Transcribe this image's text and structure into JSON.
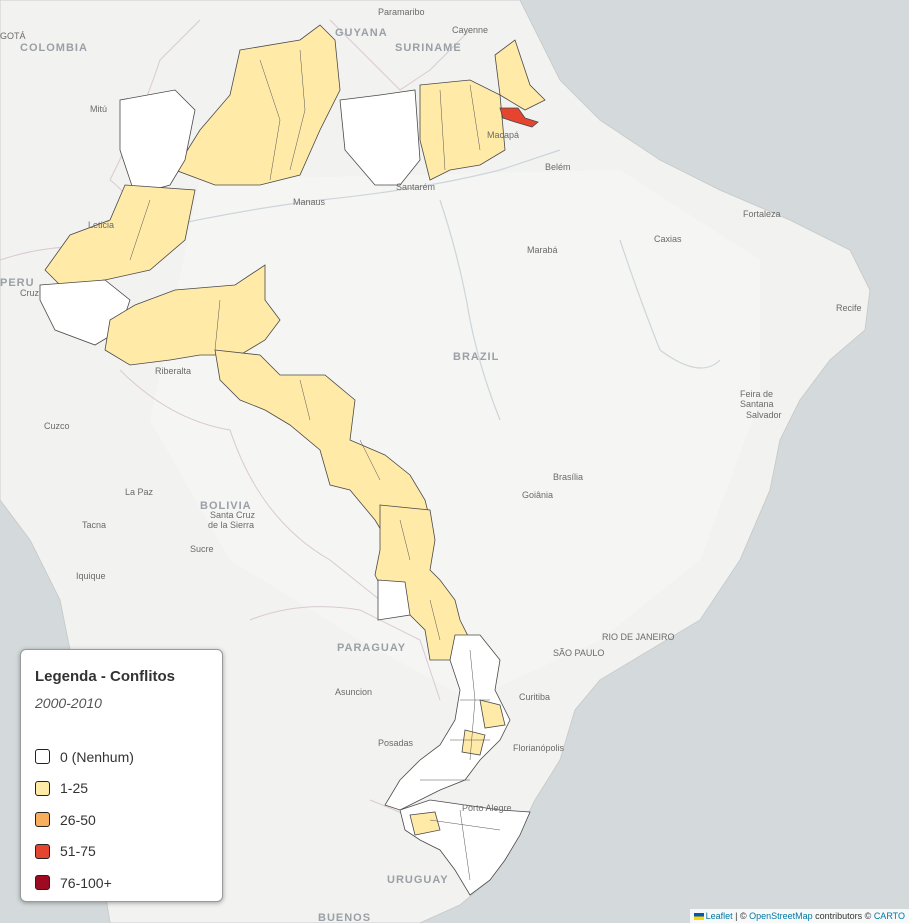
{
  "legend": {
    "title": "Legenda - Conflitos",
    "period": "2000-2010",
    "items": [
      {
        "label": "0 (Nenhum)",
        "color": "#ffffff"
      },
      {
        "label": "1-25",
        "color": "#ffeaa8"
      },
      {
        "label": "26-50",
        "color": "#f9ae5c"
      },
      {
        "label": "51-75",
        "color": "#e5452f"
      },
      {
        "label": "76-100+",
        "color": "#9e0a22"
      }
    ]
  },
  "attribution": {
    "leaflet": "Leaflet",
    "sep": " | © ",
    "osm": "OpenStreetMap",
    "contrib": " contributors © ",
    "carto": "CARTO"
  },
  "map": {
    "countries": {
      "guyana": "GUYANA",
      "suriname": "SURINAME",
      "colombia": "COLOMBIA",
      "peru": "PERU",
      "brazil": "BRAZIL",
      "bolivia": "BOLIVIA",
      "paraguay": "PARAGUAY",
      "uruguay": "URUGUAY",
      "buenos": "BUENOS"
    },
    "cities": {
      "paramaribo": "Paramaribo",
      "cayenne": "Cayenne",
      "bogota": "GOTÁ",
      "mitu": "Mitú",
      "macapa": "Macapá",
      "belem": "Belém",
      "santarem": "Santarém",
      "manaus": "Manaus",
      "fortaleza": "Fortaleza",
      "caxias": "Caxias",
      "maraba": "Marabá",
      "recife": "Recife",
      "leticia": "Leticia",
      "cruzeiro": "Cruz",
      "ribeiralta": "Riberalta",
      "feira1": "Feira de",
      "feira2": "Santana",
      "salvador": "Salvador",
      "cuzco": "Cuzco",
      "brasilia": "Brasília",
      "goiania": "Goiânia",
      "lapaz": "La Paz",
      "santacruz1": "Santa Cruz",
      "santacruz2": "de la Sierra",
      "tacna": "Tacna",
      "sucre": "Sucre",
      "iquique": "Iquique",
      "rio": "RIO DE JANEIRO",
      "saopaulo": "SÃO PAULO",
      "curitiba": "Curitiba",
      "asuncion": "Asuncion",
      "posadas": "Posadas",
      "florianopolis": "Florianópolis",
      "portoalegre": "Porto Alegre"
    }
  }
}
